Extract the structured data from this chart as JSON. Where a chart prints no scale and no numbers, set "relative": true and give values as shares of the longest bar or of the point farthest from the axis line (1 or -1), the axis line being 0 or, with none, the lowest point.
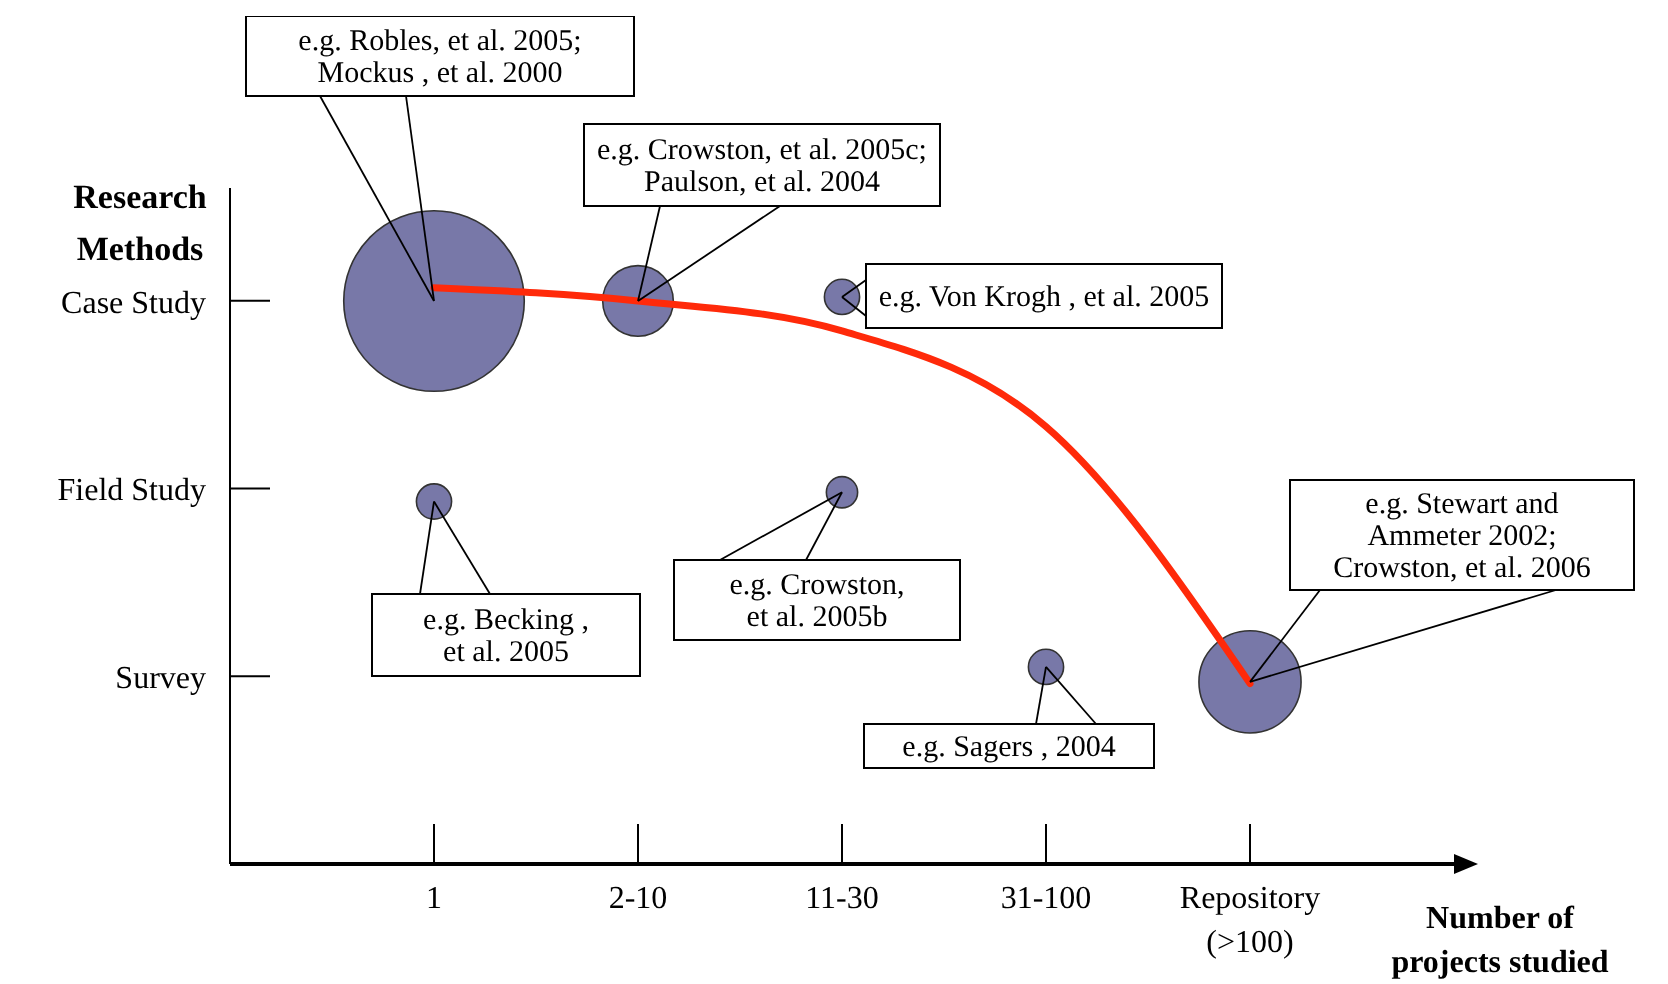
{
  "chart_data": {
    "type": "bubble",
    "relative": true,
    "xlabel": "Number of projects studied",
    "ylabel": "Research Methods",
    "categories": [
      "1",
      "2-10",
      "11-30",
      "31-100",
      "Repository (>100)"
    ],
    "y_categories": [
      "Case Study",
      "Field Study",
      "Survey"
    ],
    "series": [
      {
        "color": "#7878a8",
        "marker": "circle",
        "x": [
          "1",
          "2-10",
          "11-30",
          "1",
          "11-30",
          "31-100",
          "Repository (>100)"
        ],
        "values": [
          0.977,
          0.977,
          0.984,
          0.629,
          0.645,
          0.342,
          0.316
        ],
        "sizes": [
          1,
          0.153,
          0.038,
          0.038,
          0.03,
          0.038,
          0.32
        ]
      },
      {
        "type": "line",
        "color": "#ff2a0a",
        "marker": "none",
        "x": [
          "1",
          "2-10",
          "11-30",
          "31-100",
          "Repository (>100)"
        ],
        "values": [
          1,
          0.977,
          0.925,
          0.759,
          0.313
        ]
      }
    ],
    "annotations": [
      {
        "text": "e.g. Robles, et al. 2005;\nMockus , et al. 2000",
        "x": "1",
        "y": 0.977
      },
      {
        "text": "e.g. Crowston, et al. 2005c;\nPaulson, et al. 2004",
        "x": "2-10",
        "y": 0.977
      },
      {
        "text": "e.g. Von Krogh , et al. 2005",
        "x": "11-30",
        "y": 0.984
      },
      {
        "text": "e.g.  Becking ,\net al. 2005",
        "x": "1",
        "y": 0.629
      },
      {
        "text": "e.g. Crowston,\net al. 2005b",
        "x": "11-30",
        "y": 0.645
      },
      {
        "text": "e.g.  Sagers , 2004",
        "x": "31-100",
        "y": 0.342
      },
      {
        "text": "e.g. Stewart and\nAmmeter 2002;\nCrowston, et al. 2006",
        "x": "Repository (>100)",
        "y": 0.316
      }
    ]
  }
}
